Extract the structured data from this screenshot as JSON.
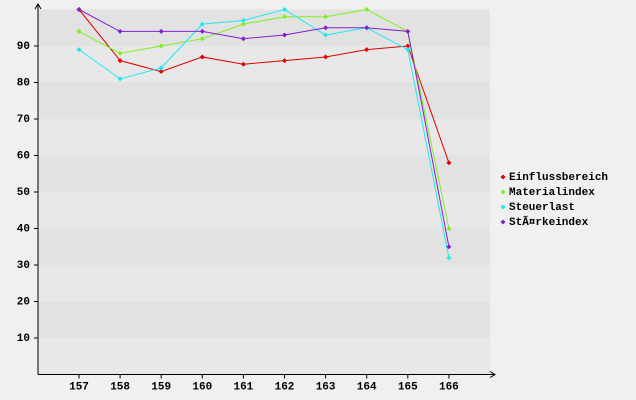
{
  "chart_data": {
    "type": "line",
    "categories": [
      "157",
      "158",
      "159",
      "160",
      "161",
      "162",
      "163",
      "164",
      "165",
      "166"
    ],
    "series": [
      {
        "name": "Einflussbereich",
        "color": "#e00000",
        "values": [
          100,
          86,
          83,
          87,
          85,
          86,
          87,
          89,
          90,
          58
        ]
      },
      {
        "name": "Materialindex",
        "color": "#80ee20",
        "values": [
          94,
          88,
          90,
          92,
          96,
          98,
          98,
          100,
          94,
          40
        ]
      },
      {
        "name": "Steuerlast",
        "color": "#20e8f0",
        "values": [
          89,
          81,
          84,
          96,
          97,
          100,
          93,
          95,
          89,
          32
        ]
      },
      {
        "name": "StÃ¤rkeindex",
        "color": "#8020d0",
        "values": [
          100,
          94,
          94,
          94,
          92,
          93,
          95,
          95,
          94,
          35
        ]
      }
    ],
    "ylim": [
      0,
      100
    ],
    "yticks": [
      10,
      20,
      30,
      40,
      50,
      60,
      70,
      80,
      90
    ],
    "legend": "right"
  }
}
